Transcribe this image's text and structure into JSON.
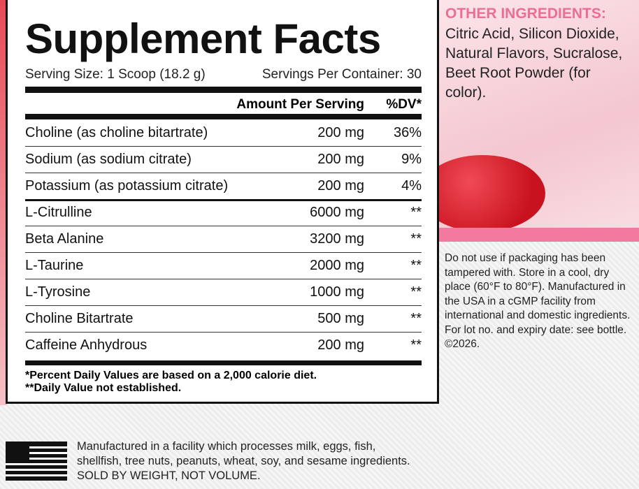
{
  "panel": {
    "title": "Supplement Facts",
    "serving_size": "Serving Size: 1 Scoop (18.2 g)",
    "servings_per_container": "Servings Per Container: 30",
    "header": {
      "amount": "Amount Per Serving",
      "dv": "%DV*"
    },
    "rows": [
      [
        "Choline (as choline bitartrate)",
        "200 mg",
        "36%"
      ],
      [
        "Sodium (as sodium citrate)",
        "200 mg",
        "9%"
      ],
      [
        "Potassium (as potassium citrate)",
        "200 mg",
        "4%"
      ],
      [
        "L-Citrulline",
        "6000 mg",
        "**"
      ],
      [
        "Beta Alanine",
        "3200 mg",
        "**"
      ],
      [
        "L-Taurine",
        "2000 mg",
        "**"
      ],
      [
        "L-Tyrosine",
        "1000 mg",
        "**"
      ],
      [
        "Choline Bitartrate",
        "500 mg",
        "**"
      ],
      [
        "Caffeine Anhydrous",
        "200 mg",
        "**"
      ]
    ],
    "footnotes": [
      "*Percent Daily Values are based on a 2,000 calorie diet.",
      "**Daily Value not established."
    ]
  },
  "other_ingredients": {
    "title": "OTHER INGREDIENTS:",
    "text": "Citric Acid, Silicon Dioxide, Natural Flavors, Sucralose, Beet Root Powder (for color)."
  },
  "warning": "Do not use if packaging has been tampered with. Store in a cool, dry place (60°F to 80°F). Manufactured in the USA in a cGMP facility from international and domestic ingredients. For lot no. and expiry date: see bottle. ©2026.",
  "allergen": "Manufactured in a facility which processes milk, eggs, fish, shellfish, tree nuts, peanuts, wheat, soy, and sesame ingredients. SOLD BY WEIGHT, NOT VOLUME."
}
